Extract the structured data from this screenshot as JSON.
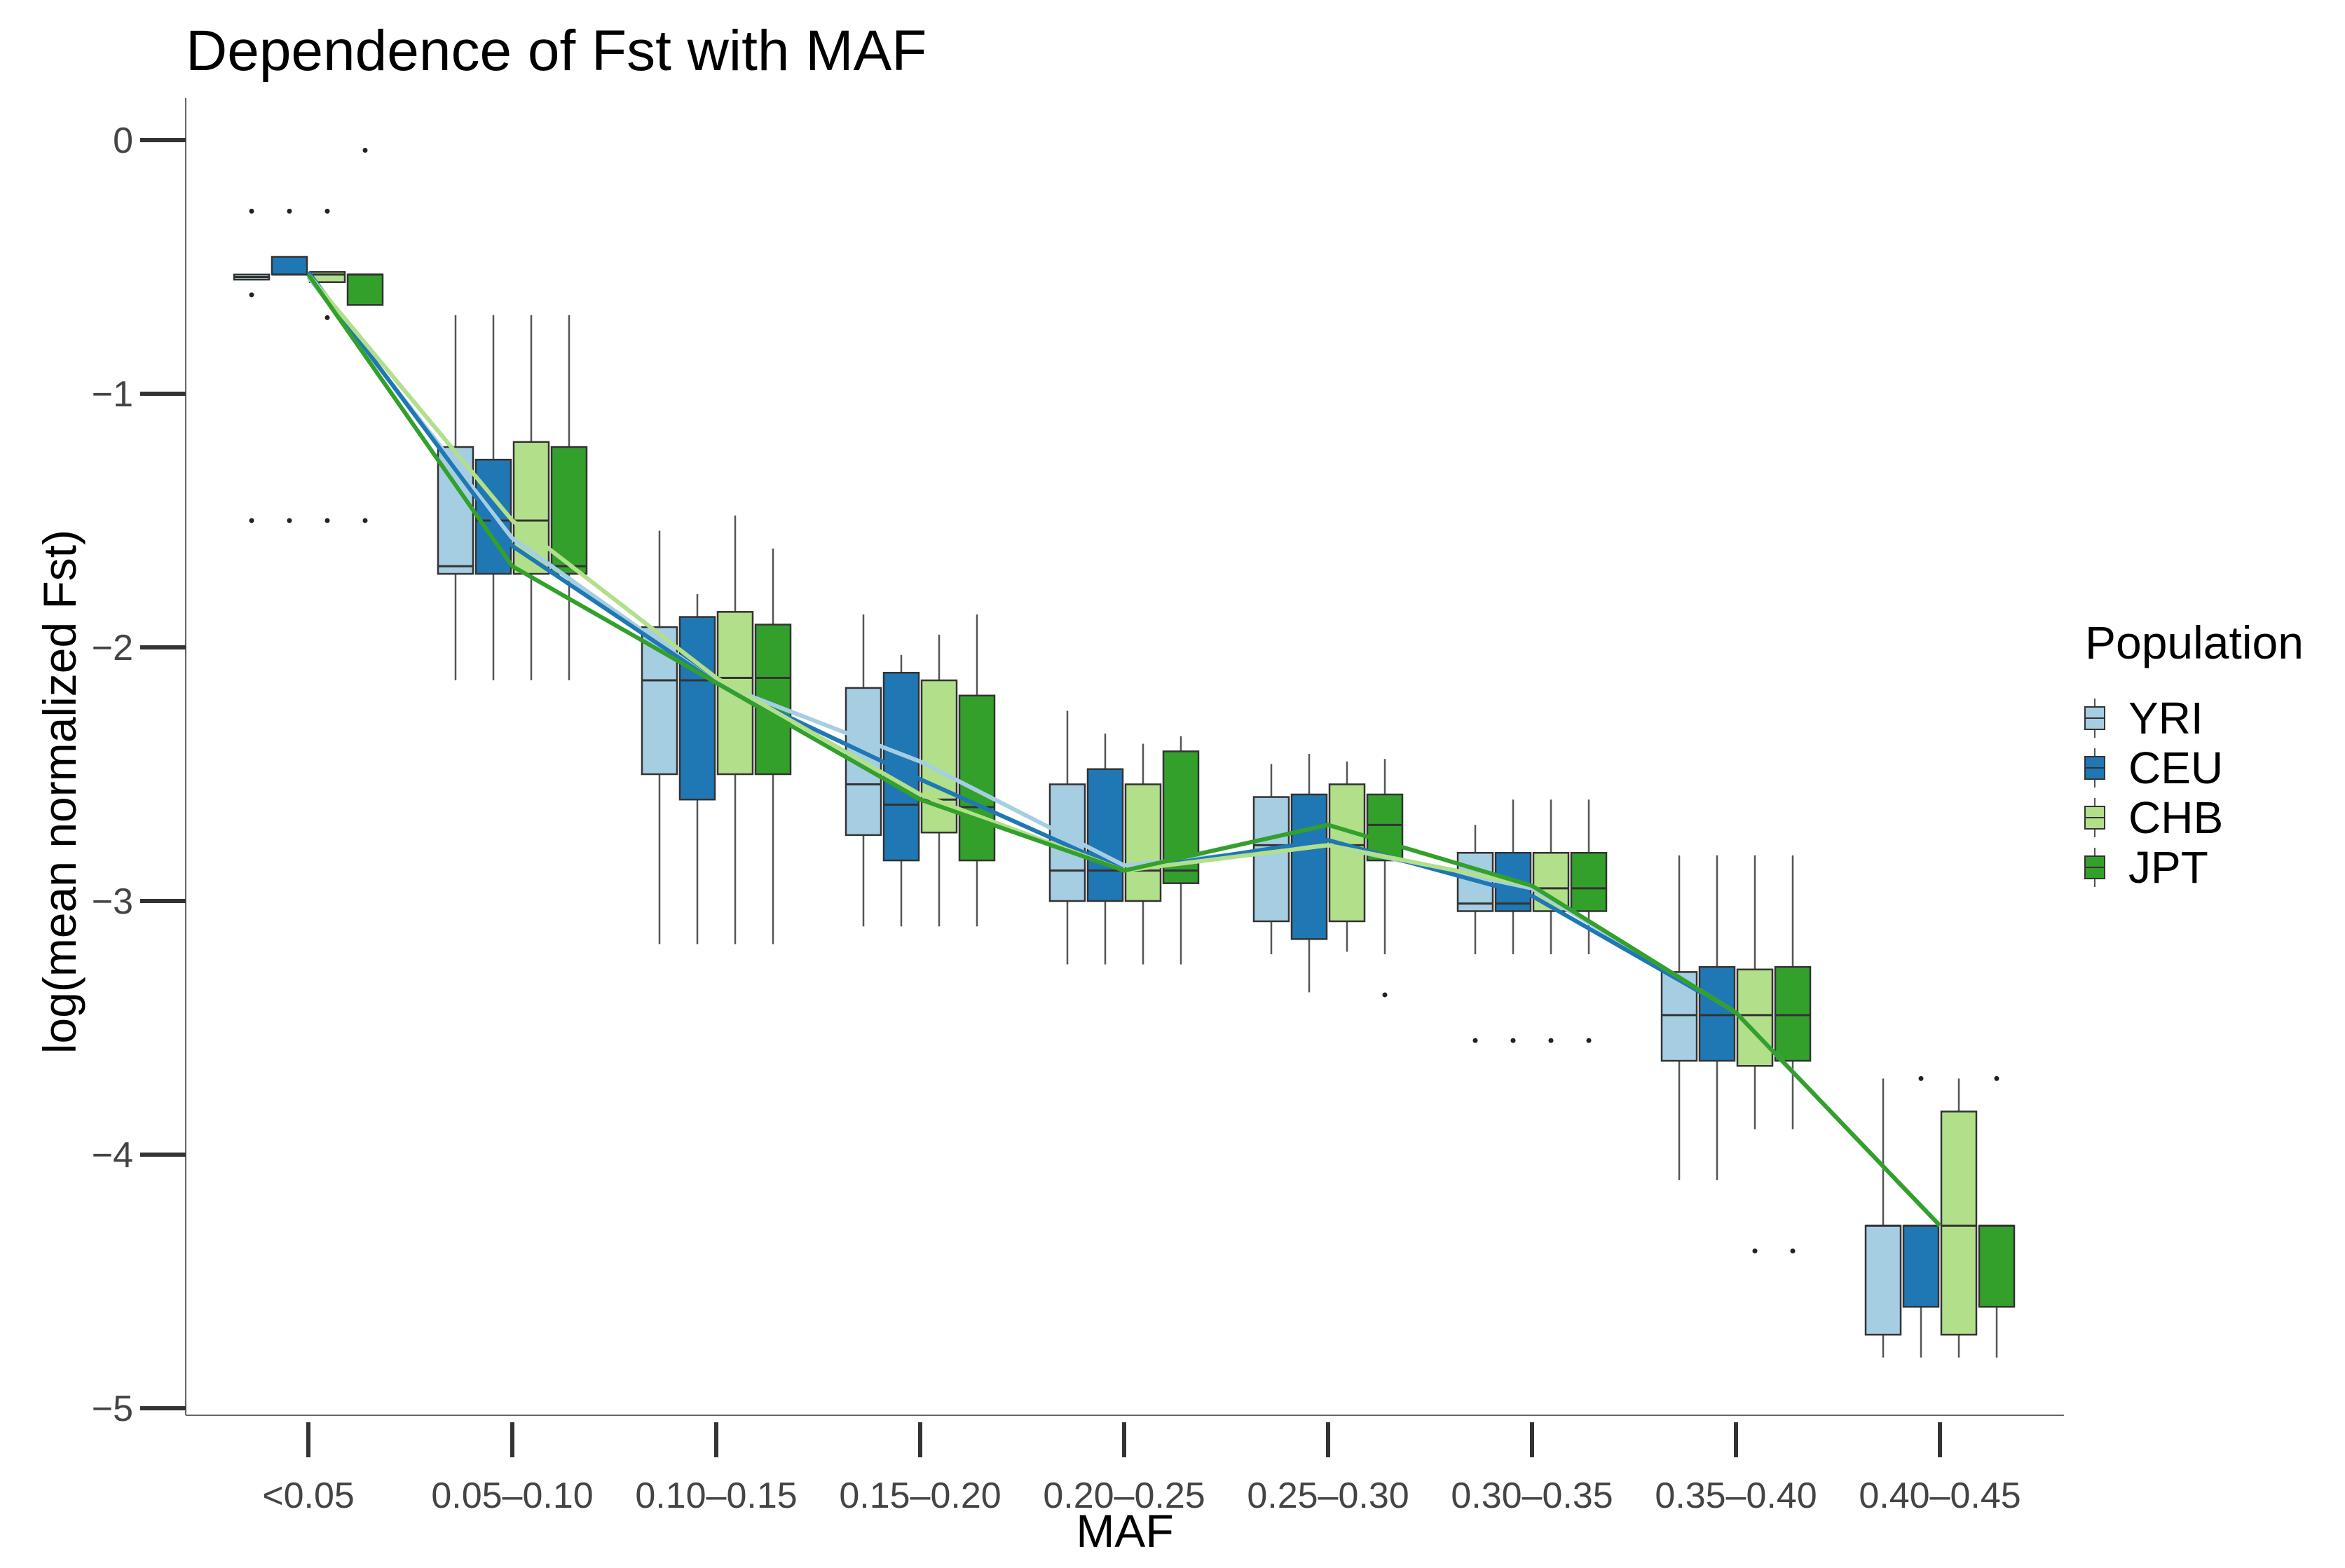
{
  "chart_data": {
    "type": "boxplot",
    "title": "Dependence of Fst with MAF",
    "xlabel": "MAF",
    "ylabel": "log(mean normalized Fst)",
    "ylim": [
      -5.1,
      0.17
    ],
    "yticks": [
      0,
      -1,
      -2,
      -3,
      -4,
      -5
    ],
    "ytick_labels": [
      "0",
      "−1",
      "−2",
      "−3",
      "−4",
      "−5"
    ],
    "categories": [
      "<0.05",
      "0.05–0.10",
      "0.10–0.15",
      "0.15–0.20",
      "0.20–0.25",
      "0.25–0.30",
      "0.30–0.35",
      "0.35–0.40",
      "0.40–0.45"
    ],
    "legend": {
      "title": "Population",
      "placement": "right"
    },
    "grid": false,
    "series": [
      {
        "name": "YRI",
        "color": "#a6cee3",
        "boxes": [
          {
            "lo": -0.55,
            "q1": -0.55,
            "med": -0.54,
            "q3": -0.53,
            "hi": -0.53,
            "out": [
              -0.28,
              -0.61,
              -1.5
            ]
          },
          {
            "lo": -2.13,
            "q1": -1.71,
            "med": -1.68,
            "q3": -1.21,
            "hi": -0.69,
            "out": []
          },
          {
            "lo": -3.17,
            "q1": -2.5,
            "med": -2.13,
            "q3": -1.92,
            "hi": -1.54,
            "out": []
          },
          {
            "lo": -3.1,
            "q1": -2.74,
            "med": -2.54,
            "q3": -2.16,
            "hi": -1.87,
            "out": []
          },
          {
            "lo": -3.25,
            "q1": -3.0,
            "med": -2.88,
            "q3": -2.54,
            "hi": -2.25,
            "out": []
          },
          {
            "lo": -3.21,
            "q1": -3.08,
            "med": -2.78,
            "q3": -2.59,
            "hi": -2.46,
            "out": []
          },
          {
            "lo": -3.21,
            "q1": -3.04,
            "med": -3.01,
            "q3": -2.81,
            "hi": -2.7,
            "out": [
              -3.55
            ]
          },
          {
            "lo": -4.1,
            "q1": -3.63,
            "med": -3.45,
            "q3": -3.28,
            "hi": -2.82,
            "out": []
          },
          {
            "lo": -4.8,
            "q1": -4.71,
            "med": -4.28,
            "q3": -4.28,
            "hi": -3.7,
            "out": []
          }
        ],
        "means": [
          -0.54,
          -1.57,
          -2.14,
          -2.45,
          -2.86,
          -2.78,
          -2.95,
          -3.44,
          -4.28
        ]
      },
      {
        "name": "CEU",
        "color": "#1f78b4",
        "boxes": [
          {
            "lo": -0.53,
            "q1": -0.53,
            "med": -0.53,
            "q3": -0.46,
            "hi": -0.46,
            "out": [
              -0.28,
              -1.5
            ]
          },
          {
            "lo": -2.13,
            "q1": -1.71,
            "med": -1.5,
            "q3": -1.26,
            "hi": -0.69,
            "out": []
          },
          {
            "lo": -3.17,
            "q1": -2.6,
            "med": -2.13,
            "q3": -1.88,
            "hi": -1.79,
            "out": []
          },
          {
            "lo": -3.1,
            "q1": -2.84,
            "med": -2.62,
            "q3": -2.1,
            "hi": -2.03,
            "out": []
          },
          {
            "lo": -3.25,
            "q1": -3.0,
            "med": -2.88,
            "q3": -2.48,
            "hi": -2.34,
            "out": []
          },
          {
            "lo": -3.36,
            "q1": -3.15,
            "med": -2.78,
            "q3": -2.58,
            "hi": -2.42,
            "out": []
          },
          {
            "lo": -3.21,
            "q1": -3.04,
            "med": -3.01,
            "q3": -2.81,
            "hi": -2.6,
            "out": [
              -3.55
            ]
          },
          {
            "lo": -4.1,
            "q1": -3.63,
            "med": -3.45,
            "q3": -3.26,
            "hi": -2.82,
            "out": []
          },
          {
            "lo": -4.8,
            "q1": -4.6,
            "med": -4.28,
            "q3": -4.28,
            "hi": -4.28,
            "out": [
              -3.7
            ]
          }
        ],
        "means": [
          -0.52,
          -1.6,
          -2.14,
          -2.52,
          -2.88,
          -2.76,
          -2.98,
          -3.44,
          -4.28
        ]
      },
      {
        "name": "CHB",
        "color": "#b2df8a",
        "boxes": [
          {
            "lo": -0.56,
            "q1": -0.56,
            "med": -0.53,
            "q3": -0.52,
            "hi": -0.52,
            "out": [
              -0.28,
              -0.7,
              -1.5
            ]
          },
          {
            "lo": -2.13,
            "q1": -1.71,
            "med": -1.5,
            "q3": -1.19,
            "hi": -0.69,
            "out": []
          },
          {
            "lo": -3.17,
            "q1": -2.5,
            "med": -2.12,
            "q3": -1.86,
            "hi": -1.48,
            "out": []
          },
          {
            "lo": -3.1,
            "q1": -2.73,
            "med": -2.6,
            "q3": -2.13,
            "hi": -1.95,
            "out": []
          },
          {
            "lo": -3.25,
            "q1": -3.0,
            "med": -2.88,
            "q3": -2.54,
            "hi": -2.38,
            "out": []
          },
          {
            "lo": -3.2,
            "q1": -3.08,
            "med": -2.78,
            "q3": -2.54,
            "hi": -2.45,
            "out": []
          },
          {
            "lo": -3.21,
            "q1": -3.04,
            "med": -2.95,
            "q3": -2.81,
            "hi": -2.6,
            "out": [
              -3.55
            ]
          },
          {
            "lo": -3.9,
            "q1": -3.65,
            "med": -3.45,
            "q3": -3.27,
            "hi": -2.82,
            "out": [
              -4.38
            ]
          },
          {
            "lo": -4.8,
            "q1": -4.71,
            "med": -4.28,
            "q3": -3.83,
            "hi": -3.7,
            "out": []
          }
        ],
        "means": [
          -0.53,
          -1.5,
          -2.12,
          -2.58,
          -2.88,
          -2.78,
          -2.94,
          -3.44,
          -4.28
        ]
      },
      {
        "name": "JPT",
        "color": "#33a02c",
        "boxes": [
          {
            "lo": -0.65,
            "q1": -0.65,
            "med": -0.53,
            "q3": -0.53,
            "hi": -0.53,
            "out": [
              -0.04,
              -1.5
            ]
          },
          {
            "lo": -2.13,
            "q1": -1.71,
            "med": -1.68,
            "q3": -1.21,
            "hi": -0.69,
            "out": []
          },
          {
            "lo": -3.17,
            "q1": -2.5,
            "med": -2.12,
            "q3": -1.91,
            "hi": -1.61,
            "out": []
          },
          {
            "lo": -3.1,
            "q1": -2.84,
            "med": -2.63,
            "q3": -2.19,
            "hi": -1.87,
            "out": []
          },
          {
            "lo": -3.25,
            "q1": -2.93,
            "med": -2.88,
            "q3": -2.41,
            "hi": -2.35,
            "out": []
          },
          {
            "lo": -3.21,
            "q1": -2.84,
            "med": -2.7,
            "q3": -2.58,
            "hi": -2.44,
            "out": [
              -3.37
            ]
          },
          {
            "lo": -3.21,
            "q1": -3.04,
            "med": -2.95,
            "q3": -2.81,
            "hi": -2.6,
            "out": [
              -3.55
            ]
          },
          {
            "lo": -3.9,
            "q1": -3.63,
            "med": -3.45,
            "q3": -3.26,
            "hi": -2.82,
            "out": [
              -4.38
            ]
          },
          {
            "lo": -4.8,
            "q1": -4.6,
            "med": -4.28,
            "q3": -4.28,
            "hi": -4.28,
            "out": [
              -3.7
            ]
          }
        ],
        "means": [
          -0.53,
          -1.68,
          -2.14,
          -2.6,
          -2.88,
          -2.7,
          -2.94,
          -3.44,
          -4.28
        ]
      }
    ]
  }
}
